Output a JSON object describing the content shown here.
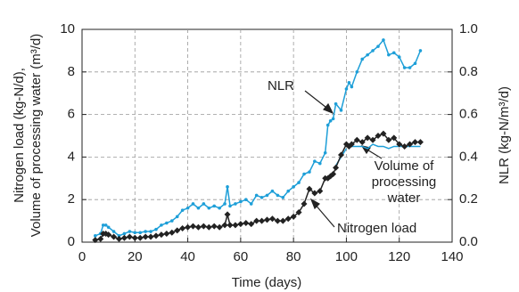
{
  "chart_data": {
    "type": "line",
    "xlabel": "Time (days)",
    "ylabel": [
      "Nitrogen load (kg-N/d),",
      "Volume of processing water (m³/d)"
    ],
    "y2label": "NLR (kg-N/m³/d)",
    "x": [
      5,
      7,
      8,
      9,
      10,
      12,
      14,
      16,
      18,
      20,
      22,
      24,
      26,
      28,
      30,
      32,
      34,
      36,
      38,
      40,
      42,
      44,
      46,
      48,
      50,
      52,
      54,
      55,
      56,
      58,
      60,
      62,
      64,
      66,
      68,
      70,
      72,
      74,
      76,
      78,
      80,
      82,
      84,
      86,
      88,
      90,
      92,
      93,
      94,
      95,
      96,
      98,
      100,
      101,
      102,
      104,
      106,
      108,
      110,
      112,
      114,
      116,
      118,
      120,
      122,
      124,
      126,
      128
    ],
    "xlim": [
      0,
      140
    ],
    "xticks": [
      0,
      20,
      40,
      60,
      80,
      100,
      120,
      140
    ],
    "ylim": [
      0,
      10
    ],
    "yticks": [
      0,
      2,
      4,
      6,
      8,
      10
    ],
    "y2lim": [
      0,
      1
    ],
    "y2ticks": [
      {
        "value": 0,
        "label": "0.0"
      },
      0.2,
      0.4,
      0.6,
      0.8,
      {
        "value": 1,
        "label": "1.0"
      }
    ],
    "grid": true,
    "series": [
      {
        "name": "NLR",
        "color": "#1e9fd8",
        "axis": "y2",
        "marker": "dot",
        "values": [
          0.03,
          0.04,
          0.08,
          0.08,
          0.07,
          0.05,
          0.03,
          0.04,
          0.05,
          0.045,
          0.045,
          0.05,
          0.05,
          0.06,
          0.08,
          0.09,
          0.1,
          0.12,
          0.15,
          0.16,
          0.18,
          0.16,
          0.18,
          0.16,
          0.17,
          0.16,
          0.18,
          0.26,
          0.17,
          0.18,
          0.19,
          0.2,
          0.18,
          0.22,
          0.21,
          0.22,
          0.24,
          0.22,
          0.21,
          0.24,
          0.26,
          0.28,
          0.32,
          0.33,
          0.38,
          0.37,
          0.42,
          0.55,
          0.57,
          0.58,
          0.65,
          0.62,
          0.72,
          0.75,
          0.73,
          0.8,
          0.86,
          0.88,
          0.9,
          0.92,
          0.95,
          0.88,
          0.89,
          0.87,
          0.82,
          0.82,
          0.84,
          0.9
        ]
      },
      {
        "name": "Volume of processing water",
        "color": "#1e9fd8",
        "axis": "y",
        "marker": "none",
        "values": [
          null,
          null,
          null,
          null,
          null,
          null,
          null,
          null,
          null,
          null,
          null,
          null,
          null,
          null,
          null,
          null,
          null,
          null,
          null,
          null,
          null,
          null,
          null,
          null,
          null,
          null,
          null,
          null,
          null,
          null,
          null,
          null,
          null,
          null,
          null,
          null,
          null,
          null,
          null,
          null,
          null,
          null,
          null,
          null,
          null,
          null,
          3.0,
          null,
          3.2,
          null,
          3.6,
          4.0,
          4.4,
          null,
          4.5,
          4.5,
          4.5,
          4.4,
          4.6,
          4.5,
          4.5,
          4.4,
          4.5,
          4.5,
          4.5,
          4.5,
          4.5,
          4.5
        ]
      },
      {
        "name": "Nitrogen load",
        "color": "#222222",
        "axis": "y",
        "marker": "diamond",
        "values": [
          0.1,
          0.15,
          0.4,
          0.4,
          0.35,
          0.25,
          0.15,
          0.2,
          0.25,
          0.2,
          0.2,
          0.25,
          0.25,
          0.3,
          0.35,
          0.4,
          0.45,
          0.55,
          0.65,
          0.7,
          0.75,
          0.7,
          0.75,
          0.7,
          0.75,
          0.7,
          0.8,
          1.3,
          0.8,
          0.8,
          0.85,
          0.9,
          0.85,
          1.0,
          1.0,
          1.05,
          1.1,
          1.0,
          1.0,
          1.1,
          1.2,
          1.4,
          1.8,
          2.5,
          2.3,
          2.4,
          3.0,
          3.0,
          3.1,
          3.2,
          3.5,
          4.1,
          4.6,
          4.5,
          4.6,
          4.8,
          4.7,
          4.9,
          4.8,
          5.0,
          5.1,
          4.8,
          4.9,
          4.6,
          4.5,
          4.6,
          4.7,
          4.7
        ]
      }
    ]
  }
}
